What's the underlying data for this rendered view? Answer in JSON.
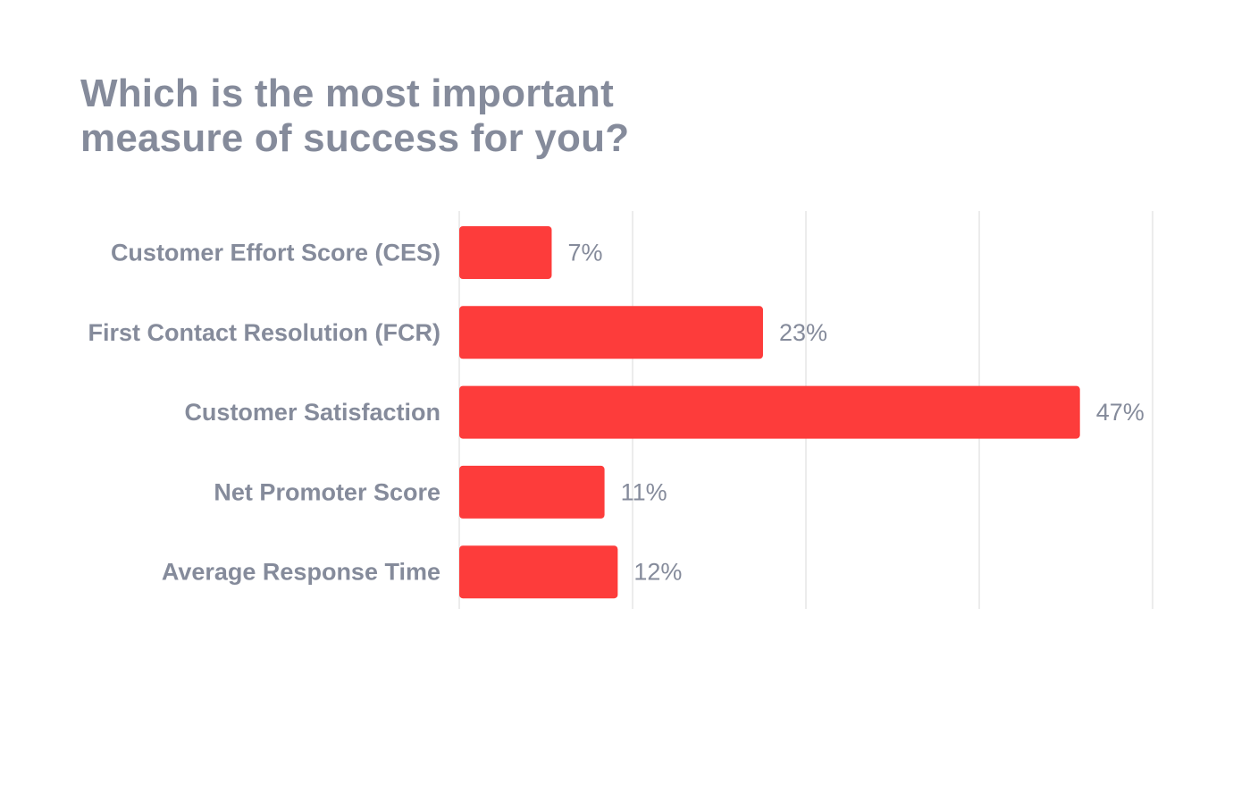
{
  "chart_data": {
    "type": "bar",
    "orientation": "horizontal",
    "title": "Which is the most important measure of success for you?",
    "categories": [
      "Customer Effort Score (CES)",
      "First Contact Resolution (FCR)",
      "Customer Satisfaction",
      "Net Promoter Score",
      "Average Response Time"
    ],
    "values": [
      7,
      23,
      47,
      11,
      12
    ],
    "value_labels": [
      "7%",
      "23%",
      "47%",
      "11%",
      "12%"
    ],
    "unit": "%",
    "xlim": [
      0,
      52.5
    ],
    "gridlines": [
      0,
      13.125,
      26.25,
      39.375,
      52.5
    ],
    "grid": true,
    "colors": {
      "bar": "#fd3c3b",
      "text": "#858b9b",
      "grid": "#e6e6e6"
    }
  }
}
